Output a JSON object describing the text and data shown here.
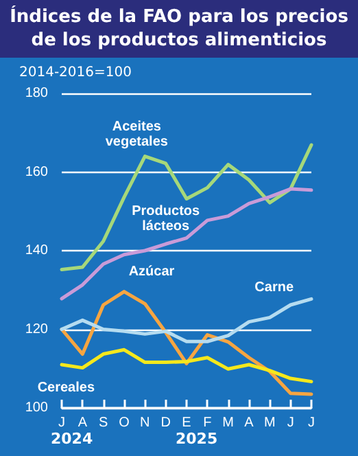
{
  "chart_data": {
    "type": "line",
    "title": "Índices de la FAO para los precios de los productos alimenticios",
    "ylabel": "2014-2016=100",
    "categories": [
      "J",
      "A",
      "S",
      "O",
      "N",
      "D",
      "E",
      "F",
      "M",
      "A",
      "M",
      "J",
      "J"
    ],
    "series": [
      {
        "name": "Aceites vegetales",
        "color": "#a6d87a",
        "values": [
          135.2,
          135.8,
          142.4,
          153.6,
          164,
          162.2,
          153.2,
          156,
          161.9,
          158,
          152.2,
          155.7,
          166.9
        ]
      },
      {
        "name": "Productos lácteos",
        "color": "#c99bd8",
        "values": [
          127.8,
          131.3,
          136.6,
          139,
          140,
          141.7,
          143.2,
          147.7,
          148.8,
          152,
          153.7,
          155.7,
          155.4
        ]
      },
      {
        "name": "Azúcar",
        "color": "#f7a541",
        "values": [
          120,
          113.7,
          126.2,
          129.6,
          126.5,
          119.2,
          111.3,
          118.6,
          116.8,
          112.8,
          109.3,
          103.7,
          103.5
        ]
      },
      {
        "name": "Carne",
        "color": "#b5dcf0",
        "values": [
          120,
          122.3,
          120,
          119.5,
          118.8,
          119.5,
          116.9,
          116.9,
          118.4,
          121.9,
          123,
          126.2,
          127.7
        ]
      },
      {
        "name": "Cereales",
        "color": "#f5e81c",
        "values": [
          111,
          110.2,
          113.7,
          114.8,
          111.6,
          111.6,
          111.8,
          112.8,
          109.9,
          111,
          109.5,
          107.5,
          106.7
        ]
      }
    ],
    "ylim": [
      100,
      180
    ],
    "yticks": [
      100,
      120,
      140,
      160,
      180
    ],
    "grid": "y",
    "legend": false,
    "marker": "none",
    "line_style": "solid",
    "annotations": [
      "2024",
      "2025"
    ]
  }
}
